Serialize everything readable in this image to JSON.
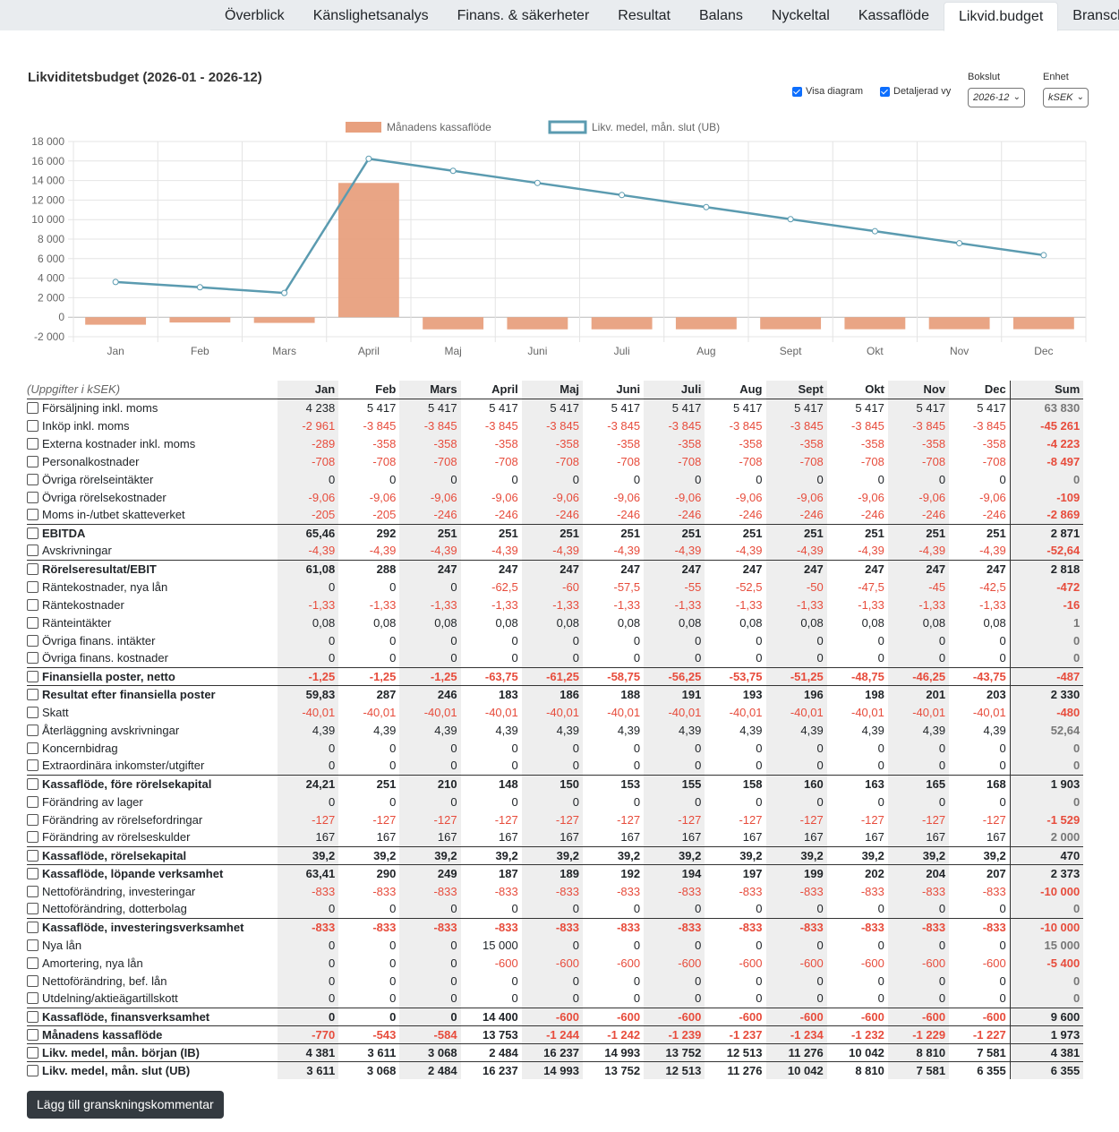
{
  "tabs": [
    {
      "label": "Överblick",
      "active": false
    },
    {
      "label": "Känslighetsanalys",
      "active": false
    },
    {
      "label": "Finans. & säkerheter",
      "active": false
    },
    {
      "label": "Resultat",
      "active": false
    },
    {
      "label": "Balans",
      "active": false
    },
    {
      "label": "Nyckeltal",
      "active": false
    },
    {
      "label": "Kassaflöde",
      "active": false
    },
    {
      "label": "Likvid.budget",
      "active": true
    },
    {
      "label": "Bransch",
      "active": false
    }
  ],
  "header": {
    "title": "Likviditetsbudget (2026-01 - 2026-12)",
    "show_chart_label": "Visa diagram",
    "detailed_label": "Detaljerad vy",
    "bokslut_label": "Bokslut",
    "bokslut_value": "2026-12",
    "unit_label": "Enhet",
    "unit_value": "kSEK"
  },
  "chart_data": {
    "type": "bar",
    "categories": [
      "Jan",
      "Feb",
      "Mars",
      "April",
      "Maj",
      "Juni",
      "Juli",
      "Aug",
      "Sept",
      "Okt",
      "Nov",
      "Dec"
    ],
    "series": [
      {
        "name": "Månadens kassaflöde",
        "type": "bar",
        "color": "#e8a07e",
        "values": [
          -770,
          -543,
          -584,
          13753,
          -1244,
          -1242,
          -1239,
          -1237,
          -1234,
          -1232,
          -1229,
          -1227
        ]
      },
      {
        "name": "Likv. medel, mån. slut (UB)",
        "type": "line",
        "color": "#5b9bb0",
        "values": [
          3611,
          3068,
          2484,
          16237,
          14993,
          13752,
          12513,
          11276,
          10042,
          8810,
          7581,
          6355
        ]
      }
    ],
    "y_ticks": [
      "18 000",
      "16 000",
      "14 000",
      "12 000",
      "10 000",
      "8 000",
      "6 000",
      "4 000",
      "2 000",
      "0",
      "-2 000"
    ],
    "ylim": [
      -2000,
      18000
    ],
    "grid": true,
    "legend_position": "top"
  },
  "table": {
    "unit_note": "(Uppgifter i kSEK)",
    "columns": [
      "Jan",
      "Feb",
      "Mars",
      "April",
      "Maj",
      "Juni",
      "Juli",
      "Aug",
      "Sept",
      "Okt",
      "Nov",
      "Dec",
      "Sum"
    ],
    "rows": [
      {
        "label": "Försäljning inkl. moms",
        "bold": false,
        "values": [
          "4 238",
          "5 417",
          "5 417",
          "5 417",
          "5 417",
          "5 417",
          "5 417",
          "5 417",
          "5 417",
          "5 417",
          "5 417",
          "5 417",
          "63 830"
        ]
      },
      {
        "label": "Inköp inkl. moms",
        "bold": false,
        "values": [
          "-2 961",
          "-3 845",
          "-3 845",
          "-3 845",
          "-3 845",
          "-3 845",
          "-3 845",
          "-3 845",
          "-3 845",
          "-3 845",
          "-3 845",
          "-3 845",
          "-45 261"
        ]
      },
      {
        "label": "Externa kostnader inkl. moms",
        "bold": false,
        "values": [
          "-289",
          "-358",
          "-358",
          "-358",
          "-358",
          "-358",
          "-358",
          "-358",
          "-358",
          "-358",
          "-358",
          "-358",
          "-4 223"
        ]
      },
      {
        "label": "Personalkostnader",
        "bold": false,
        "values": [
          "-708",
          "-708",
          "-708",
          "-708",
          "-708",
          "-708",
          "-708",
          "-708",
          "-708",
          "-708",
          "-708",
          "-708",
          "-8 497"
        ]
      },
      {
        "label": "Övriga rörelseintäkter",
        "bold": false,
        "values": [
          "0",
          "0",
          "0",
          "0",
          "0",
          "0",
          "0",
          "0",
          "0",
          "0",
          "0",
          "0",
          "0"
        ]
      },
      {
        "label": "Övriga rörelsekostnader",
        "bold": false,
        "values": [
          "-9,06",
          "-9,06",
          "-9,06",
          "-9,06",
          "-9,06",
          "-9,06",
          "-9,06",
          "-9,06",
          "-9,06",
          "-9,06",
          "-9,06",
          "-9,06",
          "-109"
        ]
      },
      {
        "label": "Moms in-/utbet skatteverket",
        "bold": false,
        "values": [
          "-205",
          "-205",
          "-246",
          "-246",
          "-246",
          "-246",
          "-246",
          "-246",
          "-246",
          "-246",
          "-246",
          "-246",
          "-2 869"
        ]
      },
      {
        "label": "EBITDA",
        "bold": true,
        "values": [
          "65,46",
          "292",
          "251",
          "251",
          "251",
          "251",
          "251",
          "251",
          "251",
          "251",
          "251",
          "251",
          "2 871"
        ]
      },
      {
        "label": "Avskrivningar",
        "bold": false,
        "values": [
          "-4,39",
          "-4,39",
          "-4,39",
          "-4,39",
          "-4,39",
          "-4,39",
          "-4,39",
          "-4,39",
          "-4,39",
          "-4,39",
          "-4,39",
          "-4,39",
          "-52,64"
        ]
      },
      {
        "label": "Rörelseresultat/EBIT",
        "bold": true,
        "values": [
          "61,08",
          "288",
          "247",
          "247",
          "247",
          "247",
          "247",
          "247",
          "247",
          "247",
          "247",
          "247",
          "2 818"
        ]
      },
      {
        "label": "Räntekostnader, nya lån",
        "bold": false,
        "values": [
          "0",
          "0",
          "0",
          "-62,5",
          "-60",
          "-57,5",
          "-55",
          "-52,5",
          "-50",
          "-47,5",
          "-45",
          "-42,5",
          "-472"
        ]
      },
      {
        "label": "Räntekostnader",
        "bold": false,
        "values": [
          "-1,33",
          "-1,33",
          "-1,33",
          "-1,33",
          "-1,33",
          "-1,33",
          "-1,33",
          "-1,33",
          "-1,33",
          "-1,33",
          "-1,33",
          "-1,33",
          "-16"
        ]
      },
      {
        "label": "Ränteintäkter",
        "bold": false,
        "values": [
          "0,08",
          "0,08",
          "0,08",
          "0,08",
          "0,08",
          "0,08",
          "0,08",
          "0,08",
          "0,08",
          "0,08",
          "0,08",
          "0,08",
          "1"
        ]
      },
      {
        "label": "Övriga finans. intäkter",
        "bold": false,
        "values": [
          "0",
          "0",
          "0",
          "0",
          "0",
          "0",
          "0",
          "0",
          "0",
          "0",
          "0",
          "0",
          "0"
        ]
      },
      {
        "label": "Övriga finans. kostnader",
        "bold": false,
        "values": [
          "0",
          "0",
          "0",
          "0",
          "0",
          "0",
          "0",
          "0",
          "0",
          "0",
          "0",
          "0",
          "0"
        ]
      },
      {
        "label": "Finansiella poster, netto",
        "bold": true,
        "values": [
          "-1,25",
          "-1,25",
          "-1,25",
          "-63,75",
          "-61,25",
          "-58,75",
          "-56,25",
          "-53,75",
          "-51,25",
          "-48,75",
          "-46,25",
          "-43,75",
          "-487"
        ]
      },
      {
        "label": "Resultat efter finansiella poster",
        "bold": true,
        "values": [
          "59,83",
          "287",
          "246",
          "183",
          "186",
          "188",
          "191",
          "193",
          "196",
          "198",
          "201",
          "203",
          "2 330"
        ]
      },
      {
        "label": "Skatt",
        "bold": false,
        "values": [
          "-40,01",
          "-40,01",
          "-40,01",
          "-40,01",
          "-40,01",
          "-40,01",
          "-40,01",
          "-40,01",
          "-40,01",
          "-40,01",
          "-40,01",
          "-40,01",
          "-480"
        ]
      },
      {
        "label": "Återläggning avskrivningar",
        "bold": false,
        "values": [
          "4,39",
          "4,39",
          "4,39",
          "4,39",
          "4,39",
          "4,39",
          "4,39",
          "4,39",
          "4,39",
          "4,39",
          "4,39",
          "4,39",
          "52,64"
        ]
      },
      {
        "label": "Koncernbidrag",
        "bold": false,
        "values": [
          "0",
          "0",
          "0",
          "0",
          "0",
          "0",
          "0",
          "0",
          "0",
          "0",
          "0",
          "0",
          "0"
        ]
      },
      {
        "label": "Extraordinära inkomster/utgifter",
        "bold": false,
        "values": [
          "0",
          "0",
          "0",
          "0",
          "0",
          "0",
          "0",
          "0",
          "0",
          "0",
          "0",
          "0",
          "0"
        ]
      },
      {
        "label": "Kassaflöde, före rörelsekapital",
        "bold": true,
        "values": [
          "24,21",
          "251",
          "210",
          "148",
          "150",
          "153",
          "155",
          "158",
          "160",
          "163",
          "165",
          "168",
          "1 903"
        ]
      },
      {
        "label": "Förändring av lager",
        "bold": false,
        "values": [
          "0",
          "0",
          "0",
          "0",
          "0",
          "0",
          "0",
          "0",
          "0",
          "0",
          "0",
          "0",
          "0"
        ]
      },
      {
        "label": "Förändring av rörelsefordringar",
        "bold": false,
        "values": [
          "-127",
          "-127",
          "-127",
          "-127",
          "-127",
          "-127",
          "-127",
          "-127",
          "-127",
          "-127",
          "-127",
          "-127",
          "-1 529"
        ]
      },
      {
        "label": "Förändring av rörelseskulder",
        "bold": false,
        "values": [
          "167",
          "167",
          "167",
          "167",
          "167",
          "167",
          "167",
          "167",
          "167",
          "167",
          "167",
          "167",
          "2 000"
        ]
      },
      {
        "label": "Kassaflöde, rörelsekapital",
        "bold": true,
        "values": [
          "39,2",
          "39,2",
          "39,2",
          "39,2",
          "39,2",
          "39,2",
          "39,2",
          "39,2",
          "39,2",
          "39,2",
          "39,2",
          "39,2",
          "470"
        ]
      },
      {
        "label": "Kassaflöde, löpande verksamhet",
        "bold": true,
        "values": [
          "63,41",
          "290",
          "249",
          "187",
          "189",
          "192",
          "194",
          "197",
          "199",
          "202",
          "204",
          "207",
          "2 373"
        ]
      },
      {
        "label": "Nettoförändring, investeringar",
        "bold": false,
        "values": [
          "-833",
          "-833",
          "-833",
          "-833",
          "-833",
          "-833",
          "-833",
          "-833",
          "-833",
          "-833",
          "-833",
          "-833",
          "-10 000"
        ]
      },
      {
        "label": "Nettoförändring, dotterbolag",
        "bold": false,
        "values": [
          "0",
          "0",
          "0",
          "0",
          "0",
          "0",
          "0",
          "0",
          "0",
          "0",
          "0",
          "0",
          "0"
        ]
      },
      {
        "label": "Kassaflöde, investeringsverksamhet",
        "bold": true,
        "values": [
          "-833",
          "-833",
          "-833",
          "-833",
          "-833",
          "-833",
          "-833",
          "-833",
          "-833",
          "-833",
          "-833",
          "-833",
          "-10 000"
        ]
      },
      {
        "label": "Nya lån",
        "bold": false,
        "values": [
          "0",
          "0",
          "0",
          "15 000",
          "0",
          "0",
          "0",
          "0",
          "0",
          "0",
          "0",
          "0",
          "15 000"
        ]
      },
      {
        "label": "Amortering, nya lån",
        "bold": false,
        "values": [
          "0",
          "0",
          "0",
          "-600",
          "-600",
          "-600",
          "-600",
          "-600",
          "-600",
          "-600",
          "-600",
          "-600",
          "-5 400"
        ]
      },
      {
        "label": "Nettoförändring, bef. lån",
        "bold": false,
        "values": [
          "0",
          "0",
          "0",
          "0",
          "0",
          "0",
          "0",
          "0",
          "0",
          "0",
          "0",
          "0",
          "0"
        ]
      },
      {
        "label": "Utdelning/aktieägartillskott",
        "bold": false,
        "values": [
          "0",
          "0",
          "0",
          "0",
          "0",
          "0",
          "0",
          "0",
          "0",
          "0",
          "0",
          "0",
          "0"
        ]
      },
      {
        "label": "Kassaflöde, finansverksamhet",
        "bold": true,
        "values": [
          "0",
          "0",
          "0",
          "14 400",
          "-600",
          "-600",
          "-600",
          "-600",
          "-600",
          "-600",
          "-600",
          "-600",
          "9 600"
        ]
      },
      {
        "label": "Månadens kassaflöde",
        "bold": true,
        "values": [
          "-770",
          "-543",
          "-584",
          "13 753",
          "-1 244",
          "-1 242",
          "-1 239",
          "-1 237",
          "-1 234",
          "-1 232",
          "-1 229",
          "-1 227",
          "1 973"
        ]
      },
      {
        "label": "Likv. medel, mån. början (IB)",
        "bold": true,
        "values": [
          "4 381",
          "3 611",
          "3 068",
          "2 484",
          "16 237",
          "14 993",
          "13 752",
          "12 513",
          "11 276",
          "10 042",
          "8 810",
          "7 581",
          "4 381"
        ]
      },
      {
        "label": "Likv. medel, mån. slut (UB)",
        "bold": true,
        "values": [
          "3 611",
          "3 068",
          "2 484",
          "16 237",
          "14 993",
          "13 752",
          "12 513",
          "11 276",
          "10 042",
          "8 810",
          "7 581",
          "6 355",
          "6 355"
        ]
      }
    ]
  },
  "footer": {
    "review_button_label": "Lägg till granskningskommentar"
  }
}
